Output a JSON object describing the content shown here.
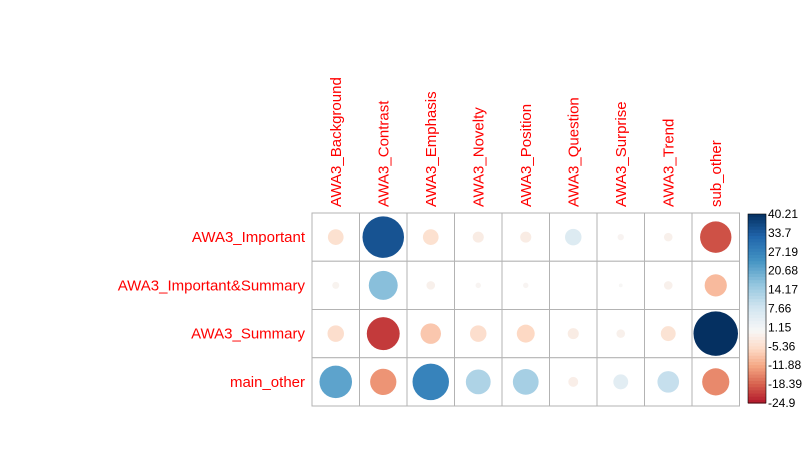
{
  "chart_data": {
    "type": "heatmap",
    "style": "corrplot-circle",
    "rows": [
      "AWA3_Important",
      "AWA3_Important&Summary",
      "AWA3_Summary",
      "main_other"
    ],
    "columns": [
      "AWA3_Background",
      "AWA3_Contrast",
      "AWA3_Emphasis",
      "AWA3_Novelty",
      "AWA3_Position",
      "AWA3_Question",
      "AWA3_Surprise",
      "AWA3_Trend",
      "sub_other"
    ],
    "values": [
      [
        -5.0,
        35.0,
        -5.0,
        -2.5,
        -2.5,
        5.5,
        -0.8,
        -1.5,
        -20.0
      ],
      [
        -1.0,
        17.0,
        -1.5,
        -0.6,
        -0.6,
        0.0,
        -0.3,
        -1.5,
        -10.0
      ],
      [
        -5.5,
        -22.0,
        -8.5,
        -5.5,
        -6.5,
        -2.5,
        -1.5,
        -4.5,
        40.21
      ],
      [
        21.5,
        -14.0,
        27.0,
        12.5,
        13.5,
        -2.0,
        4.5,
        9.5,
        -15.0
      ]
    ],
    "color_scale": {
      "min": -24.9,
      "max": 40.21,
      "ticks": [
        "40.21",
        "33.7",
        "27.19",
        "20.68",
        "14.17",
        "7.66",
        "1.15",
        "-5.36",
        "-11.88",
        "-18.39",
        "-24.9"
      ],
      "negative_color": "#b2182b",
      "neutral_color": "#f7f7f7",
      "positive_color": "#053061"
    },
    "label_color": "#ff0000",
    "grid": true
  }
}
